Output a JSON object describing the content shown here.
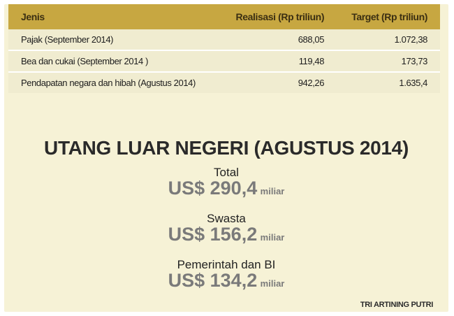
{
  "table": {
    "headers": [
      "Jenis",
      "Realisasi (Rp triliun)",
      "Target (Rp triliun)"
    ],
    "rows": [
      [
        "Pajak (September 2014)",
        "688,05",
        "1.072,38"
      ],
      [
        "Bea dan cukai (September 2014 )",
        "119,48",
        "173,73"
      ],
      [
        "Pendapatan negara dan hibah (Agustus 2014)",
        "942,26",
        "1.635,4"
      ]
    ]
  },
  "debt": {
    "title": "UTANG LUAR NEGERI (AGUSTUS 2014)",
    "items": [
      {
        "label": "Total",
        "value": "US$ 290,4",
        "unit": "miliar"
      },
      {
        "label": "Swasta",
        "value": "US$ 156,2",
        "unit": "miliar"
      },
      {
        "label": "Pemerintah dan BI",
        "value": "US$ 134,2",
        "unit": "miliar"
      }
    ]
  },
  "credit": "TRI ARTINING PUTRI",
  "colors": {
    "header_bg": "#c7a741",
    "row_bg": "#f0ecd0",
    "panel_bg": "#f6f2d6"
  }
}
